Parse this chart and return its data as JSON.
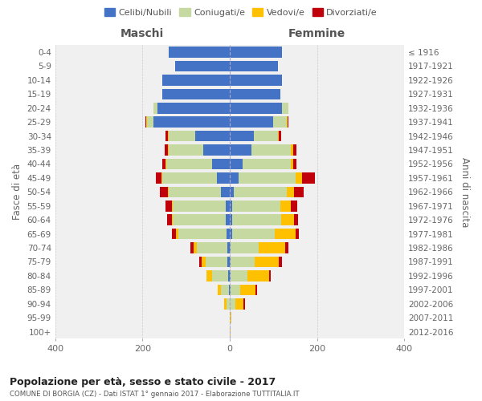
{
  "age_groups": [
    "0-4",
    "5-9",
    "10-14",
    "15-19",
    "20-24",
    "25-29",
    "30-34",
    "35-39",
    "40-44",
    "45-49",
    "50-54",
    "55-59",
    "60-64",
    "65-69",
    "70-74",
    "75-79",
    "80-84",
    "85-89",
    "90-94",
    "95-99",
    "100+"
  ],
  "birth_years": [
    "2012-2016",
    "2007-2011",
    "2002-2006",
    "1997-2001",
    "1992-1996",
    "1987-1991",
    "1982-1986",
    "1977-1981",
    "1972-1976",
    "1967-1971",
    "1962-1966",
    "1957-1961",
    "1952-1956",
    "1947-1951",
    "1942-1946",
    "1937-1941",
    "1932-1936",
    "1927-1931",
    "1922-1926",
    "1917-1921",
    "≤ 1916"
  ],
  "males": {
    "celibinubili": [
      140,
      125,
      155,
      155,
      165,
      175,
      80,
      60,
      40,
      30,
      20,
      10,
      10,
      8,
      5,
      5,
      3,
      2,
      0,
      0,
      0
    ],
    "coniugati": [
      0,
      0,
      0,
      0,
      10,
      15,
      60,
      80,
      105,
      125,
      120,
      120,
      120,
      110,
      70,
      50,
      38,
      18,
      8,
      1,
      0
    ],
    "vedovi": [
      0,
      0,
      0,
      0,
      0,
      2,
      2,
      2,
      2,
      2,
      2,
      2,
      2,
      5,
      8,
      10,
      12,
      8,
      5,
      0,
      0
    ],
    "divorziati": [
      0,
      0,
      0,
      0,
      0,
      2,
      5,
      8,
      8,
      12,
      18,
      15,
      12,
      10,
      8,
      5,
      0,
      0,
      0,
      0,
      0
    ]
  },
  "females": {
    "celibenubili": [
      120,
      110,
      120,
      115,
      120,
      100,
      55,
      50,
      30,
      20,
      10,
      5,
      5,
      5,
      2,
      2,
      2,
      2,
      0,
      0,
      0
    ],
    "coniugate": [
      0,
      0,
      0,
      0,
      15,
      30,
      55,
      90,
      110,
      130,
      120,
      110,
      112,
      98,
      65,
      55,
      38,
      22,
      12,
      2,
      0
    ],
    "vedove": [
      0,
      0,
      0,
      0,
      0,
      2,
      2,
      5,
      5,
      15,
      18,
      25,
      30,
      48,
      60,
      55,
      50,
      35,
      20,
      2,
      1
    ],
    "divorziate": [
      0,
      0,
      0,
      0,
      0,
      2,
      5,
      8,
      8,
      30,
      22,
      15,
      10,
      8,
      8,
      8,
      3,
      3,
      2,
      0,
      0
    ]
  },
  "colors": {
    "celibi": "#4472c4",
    "coniugati": "#c5d9a0",
    "vedovi": "#ffc000",
    "divorziati": "#c0000b"
  },
  "title": "Popolazione per età, sesso e stato civile - 2017",
  "subtitle": "COMUNE DI BORGIA (CZ) - Dati ISTAT 1° gennaio 2017 - Elaborazione TUTTITALIA.IT",
  "ylabel_left": "Fasce di età",
  "ylabel_right": "Anni di nascita",
  "xlim": 400,
  "legend_labels": [
    "Celibi/Nubili",
    "Coniugati/e",
    "Vedovi/e",
    "Divorziati/e"
  ],
  "maschi_label": "Maschi",
  "femmine_label": "Femmine",
  "bg_color": "#ffffff",
  "plot_bg": "#f0f0f0",
  "grid_color": "#cccccc"
}
